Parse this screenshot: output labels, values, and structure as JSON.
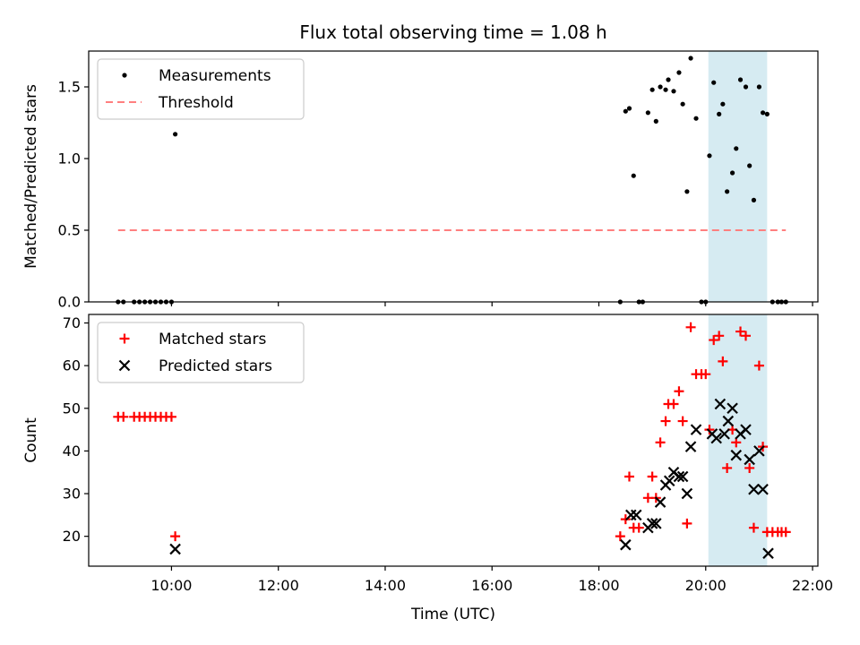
{
  "chart_data": {
    "title": "Flux total observing time = 1.08 h",
    "xlabel": "Time (UTC)",
    "x_units": "hours UTC",
    "xlim": [
      8.45,
      22.1
    ],
    "x_ticks": [
      10,
      12,
      14,
      16,
      18,
      20,
      22
    ],
    "x_tick_labels": [
      "10:00",
      "12:00",
      "14:00",
      "16:00",
      "18:00",
      "20:00",
      "22:00"
    ],
    "highlight_span": [
      20.05,
      21.15
    ],
    "highlight_color": "#add8e6",
    "panels": [
      {
        "type": "scatter",
        "ylabel": "Matched/Predicted stars",
        "ylim": [
          0,
          1.75
        ],
        "y_ticks": [
          0.0,
          0.5,
          1.0,
          1.5
        ],
        "y_tick_labels": [
          "0.0",
          "0.5",
          "1.0",
          "1.5"
        ],
        "legend_position": "top-left",
        "series": [
          {
            "name": "Measurements",
            "marker": "dot",
            "color": "#000000",
            "points": [
              [
                9.0,
                0
              ],
              [
                9.1,
                0
              ],
              [
                9.3,
                0
              ],
              [
                9.4,
                0
              ],
              [
                9.5,
                0
              ],
              [
                9.6,
                0
              ],
              [
                9.7,
                0
              ],
              [
                9.8,
                0
              ],
              [
                9.9,
                0
              ],
              [
                10.0,
                0
              ],
              [
                10.07,
                1.17
              ],
              [
                18.4,
                0
              ],
              [
                18.5,
                1.33
              ],
              [
                18.57,
                1.35
              ],
              [
                18.65,
                0.88
              ],
              [
                18.75,
                0
              ],
              [
                18.82,
                0
              ],
              [
                18.92,
                1.32
              ],
              [
                19.0,
                1.48
              ],
              [
                19.07,
                1.26
              ],
              [
                19.15,
                1.5
              ],
              [
                19.25,
                1.48
              ],
              [
                19.3,
                1.55
              ],
              [
                19.4,
                1.47
              ],
              [
                19.5,
                1.6
              ],
              [
                19.57,
                1.38
              ],
              [
                19.65,
                0.77
              ],
              [
                19.72,
                1.7
              ],
              [
                19.82,
                1.28
              ],
              [
                19.92,
                0
              ],
              [
                20.0,
                0
              ],
              [
                20.07,
                1.02
              ],
              [
                20.15,
                1.53
              ],
              [
                20.25,
                1.31
              ],
              [
                20.32,
                1.38
              ],
              [
                20.4,
                0.77
              ],
              [
                20.5,
                0.9
              ],
              [
                20.57,
                1.07
              ],
              [
                20.65,
                1.55
              ],
              [
                20.75,
                1.5
              ],
              [
                20.82,
                0.95
              ],
              [
                20.9,
                0.71
              ],
              [
                21.0,
                1.5
              ],
              [
                21.07,
                1.32
              ],
              [
                21.15,
                1.31
              ],
              [
                21.25,
                0
              ],
              [
                21.35,
                0
              ],
              [
                21.42,
                0
              ],
              [
                21.5,
                0
              ]
            ]
          },
          {
            "name": "Threshold",
            "marker": "dashed-line",
            "color": "#ff7f7f",
            "points": [
              [
                9.0,
                0.5
              ],
              [
                21.5,
                0.5
              ]
            ]
          }
        ]
      },
      {
        "type": "scatter",
        "ylabel": "Count",
        "ylim": [
          13,
          72
        ],
        "y_ticks": [
          20,
          30,
          40,
          50,
          60,
          70
        ],
        "y_tick_labels": [
          "20",
          "30",
          "40",
          "50",
          "60",
          "70"
        ],
        "legend_position": "top-left",
        "series": [
          {
            "name": "Matched stars",
            "marker": "plus",
            "color": "#ff0000",
            "points": [
              [
                9.0,
                48
              ],
              [
                9.1,
                48
              ],
              [
                9.3,
                48
              ],
              [
                9.4,
                48
              ],
              [
                9.5,
                48
              ],
              [
                9.6,
                48
              ],
              [
                9.7,
                48
              ],
              [
                9.8,
                48
              ],
              [
                9.9,
                48
              ],
              [
                10.0,
                48
              ],
              [
                10.07,
                20
              ],
              [
                18.4,
                20
              ],
              [
                18.5,
                24
              ],
              [
                18.57,
                34
              ],
              [
                18.65,
                22
              ],
              [
                18.75,
                22
              ],
              [
                18.92,
                29
              ],
              [
                19.0,
                34
              ],
              [
                19.07,
                29
              ],
              [
                19.15,
                42
              ],
              [
                19.25,
                47
              ],
              [
                19.3,
                51
              ],
              [
                19.4,
                51
              ],
              [
                19.5,
                54
              ],
              [
                19.57,
                47
              ],
              [
                19.65,
                23
              ],
              [
                19.72,
                69
              ],
              [
                19.82,
                58
              ],
              [
                19.92,
                58
              ],
              [
                20.0,
                58
              ],
              [
                20.07,
                45
              ],
              [
                20.15,
                66
              ],
              [
                20.25,
                67
              ],
              [
                20.32,
                61
              ],
              [
                20.4,
                36
              ],
              [
                20.5,
                45
              ],
              [
                20.57,
                42
              ],
              [
                20.65,
                68
              ],
              [
                20.75,
                67
              ],
              [
                20.82,
                36
              ],
              [
                20.9,
                22
              ],
              [
                21.0,
                60
              ],
              [
                21.07,
                41
              ],
              [
                21.15,
                21
              ],
              [
                21.25,
                21
              ],
              [
                21.35,
                21
              ],
              [
                21.42,
                21
              ],
              [
                21.5,
                21
              ]
            ]
          },
          {
            "name": "Predicted stars",
            "marker": "x",
            "color": "#000000",
            "points": [
              [
                10.07,
                17
              ],
              [
                18.5,
                18
              ],
              [
                18.6,
                25
              ],
              [
                18.7,
                25
              ],
              [
                18.92,
                22
              ],
              [
                19.0,
                23
              ],
              [
                19.07,
                23
              ],
              [
                19.15,
                28
              ],
              [
                19.25,
                32
              ],
              [
                19.32,
                33
              ],
              [
                19.4,
                35
              ],
              [
                19.5,
                34
              ],
              [
                19.57,
                34
              ],
              [
                19.65,
                30
              ],
              [
                19.72,
                41
              ],
              [
                19.82,
                45
              ],
              [
                20.12,
                44
              ],
              [
                20.2,
                43
              ],
              [
                20.27,
                51
              ],
              [
                20.35,
                44
              ],
              [
                20.42,
                47
              ],
              [
                20.5,
                50
              ],
              [
                20.57,
                39
              ],
              [
                20.65,
                44
              ],
              [
                20.75,
                45
              ],
              [
                20.82,
                38
              ],
              [
                20.9,
                31
              ],
              [
                21.0,
                40
              ],
              [
                21.07,
                31
              ],
              [
                21.17,
                16
              ]
            ]
          }
        ]
      }
    ]
  }
}
